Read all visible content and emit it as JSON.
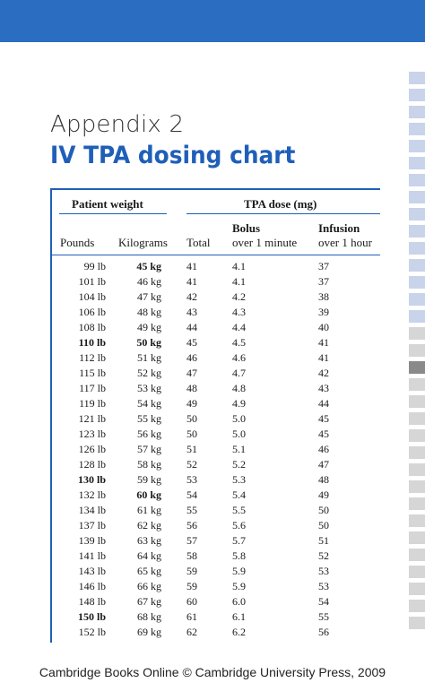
{
  "header": {
    "appendix_label": "Appendix 2",
    "title": "IV TPA dosing chart"
  },
  "table": {
    "group_weight": "Patient weight",
    "group_dose": "TPA dose (mg)",
    "col_pounds": "Pounds",
    "col_kilograms": "Kilograms",
    "col_total": "Total",
    "col_bolus_title": "Bolus",
    "col_bolus_sub": "over 1 minute",
    "col_infusion_title": "Infusion",
    "col_infusion_sub": "over 1 hour",
    "rows": [
      {
        "lb": "99 lb",
        "kg": "45 kg",
        "total": "41",
        "bolus": "4.1",
        "infusion": "37",
        "bold_lb": false,
        "bold_kg": true
      },
      {
        "lb": "101 lb",
        "kg": "46 kg",
        "total": "41",
        "bolus": "4.1",
        "infusion": "37",
        "bold_lb": false,
        "bold_kg": false
      },
      {
        "lb": "104 lb",
        "kg": "47 kg",
        "total": "42",
        "bolus": "4.2",
        "infusion": "38",
        "bold_lb": false,
        "bold_kg": false
      },
      {
        "lb": "106 lb",
        "kg": "48 kg",
        "total": "43",
        "bolus": "4.3",
        "infusion": "39",
        "bold_lb": false,
        "bold_kg": false
      },
      {
        "lb": "108 lb",
        "kg": "49 kg",
        "total": "44",
        "bolus": "4.4",
        "infusion": "40",
        "bold_lb": false,
        "bold_kg": false
      },
      {
        "lb": "110 lb",
        "kg": "50 kg",
        "total": "45",
        "bolus": "4.5",
        "infusion": "41",
        "bold_lb": true,
        "bold_kg": true
      },
      {
        "lb": "112 lb",
        "kg": "51 kg",
        "total": "46",
        "bolus": "4.6",
        "infusion": "41",
        "bold_lb": false,
        "bold_kg": false
      },
      {
        "lb": "115 lb",
        "kg": "52 kg",
        "total": "47",
        "bolus": "4.7",
        "infusion": "42",
        "bold_lb": false,
        "bold_kg": false
      },
      {
        "lb": "117 lb",
        "kg": "53 kg",
        "total": "48",
        "bolus": "4.8",
        "infusion": "43",
        "bold_lb": false,
        "bold_kg": false
      },
      {
        "lb": "119 lb",
        "kg": "54 kg",
        "total": "49",
        "bolus": "4.9",
        "infusion": "44",
        "bold_lb": false,
        "bold_kg": false
      },
      {
        "lb": "121 lb",
        "kg": "55 kg",
        "total": "50",
        "bolus": "5.0",
        "infusion": "45",
        "bold_lb": false,
        "bold_kg": false
      },
      {
        "lb": "123 lb",
        "kg": "56 kg",
        "total": "50",
        "bolus": "5.0",
        "infusion": "45",
        "bold_lb": false,
        "bold_kg": false
      },
      {
        "lb": "126 lb",
        "kg": "57 kg",
        "total": "51",
        "bolus": "5.1",
        "infusion": "46",
        "bold_lb": false,
        "bold_kg": false
      },
      {
        "lb": "128 lb",
        "kg": "58 kg",
        "total": "52",
        "bolus": "5.2",
        "infusion": "47",
        "bold_lb": false,
        "bold_kg": false
      },
      {
        "lb": "130 lb",
        "kg": "59 kg",
        "total": "53",
        "bolus": "5.3",
        "infusion": "48",
        "bold_lb": true,
        "bold_kg": false
      },
      {
        "lb": "132 lb",
        "kg": "60 kg",
        "total": "54",
        "bolus": "5.4",
        "infusion": "49",
        "bold_lb": false,
        "bold_kg": true
      },
      {
        "lb": "134 lb",
        "kg": "61 kg",
        "total": "55",
        "bolus": "5.5",
        "infusion": "50",
        "bold_lb": false,
        "bold_kg": false
      },
      {
        "lb": "137 lb",
        "kg": "62 kg",
        "total": "56",
        "bolus": "5.6",
        "infusion": "50",
        "bold_lb": false,
        "bold_kg": false
      },
      {
        "lb": "139 lb",
        "kg": "63 kg",
        "total": "57",
        "bolus": "5.7",
        "infusion": "51",
        "bold_lb": false,
        "bold_kg": false
      },
      {
        "lb": "141 lb",
        "kg": "64 kg",
        "total": "58",
        "bolus": "5.8",
        "infusion": "52",
        "bold_lb": false,
        "bold_kg": false
      },
      {
        "lb": "143 lb",
        "kg": "65 kg",
        "total": "59",
        "bolus": "5.9",
        "infusion": "53",
        "bold_lb": false,
        "bold_kg": false
      },
      {
        "lb": "146 lb",
        "kg": "66 kg",
        "total": "59",
        "bolus": "5.9",
        "infusion": "53",
        "bold_lb": false,
        "bold_kg": false
      },
      {
        "lb": "148 lb",
        "kg": "67 kg",
        "total": "60",
        "bolus": "6.0",
        "infusion": "54",
        "bold_lb": false,
        "bold_kg": false
      },
      {
        "lb": "150 lb",
        "kg": "68 kg",
        "total": "61",
        "bolus": "6.1",
        "infusion": "55",
        "bold_lb": true,
        "bold_kg": false
      },
      {
        "lb": "152 lb",
        "kg": "69 kg",
        "total": "62",
        "bolus": "6.2",
        "infusion": "56",
        "bold_lb": false,
        "bold_kg": false
      }
    ]
  },
  "footer": {
    "text": "Cambridge Books Online © Cambridge University Press, 2009"
  },
  "colors": {
    "accent": "#1f5fb8",
    "topbar": "#2a6dc1",
    "side_tab": "#c9d3ea",
    "side_tab_active": "#8a8a8a"
  }
}
